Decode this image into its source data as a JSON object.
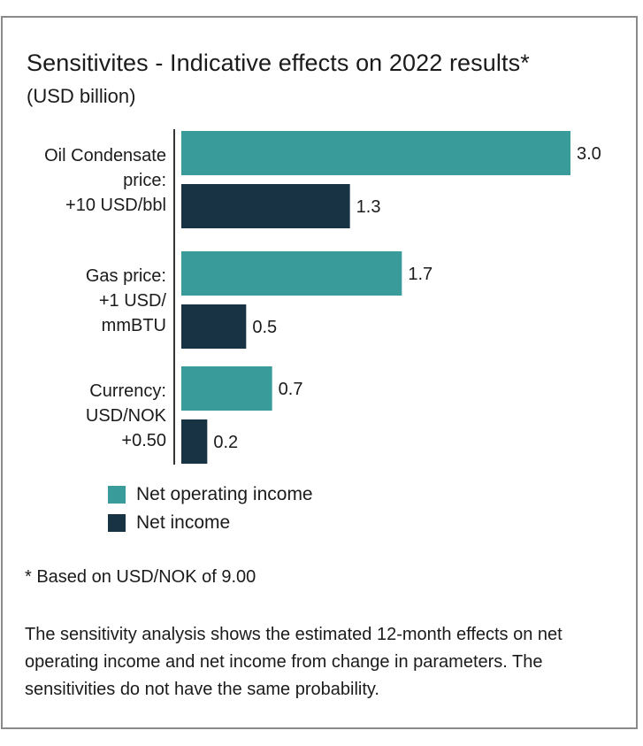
{
  "title": "Sensitivites - Indicative effects on 2022 results*",
  "subtitle": "(USD billion)",
  "colors": {
    "net_operating_income": "#3a9b9b",
    "net_income": "#183344",
    "axis": "#333333"
  },
  "chart_data": {
    "type": "bar",
    "orientation": "horizontal",
    "title": "Sensitivites - Indicative effects on 2022 results*",
    "ylabel": "(USD billion)",
    "categories": [
      [
        "Oil Condensate",
        "price:",
        "+10 USD/bbl"
      ],
      [
        "Gas price:",
        "+1 USD/",
        "mmBTU"
      ],
      [
        "Currency:",
        "USD/NOK",
        "+0.50"
      ]
    ],
    "series": [
      {
        "name": "Net operating income",
        "values": [
          3.0,
          1.7,
          0.7
        ],
        "labels": [
          "3.0",
          "1.7",
          "0.7"
        ]
      },
      {
        "name": "Net income",
        "values": [
          1.3,
          0.5,
          0.2
        ],
        "labels": [
          "1.3",
          "0.5",
          "0.2"
        ]
      }
    ],
    "xlim": [
      0,
      3.0
    ],
    "legend": "bottom-left"
  },
  "legend": {
    "items": [
      {
        "label": "Net operating income"
      },
      {
        "label": "Net income"
      }
    ]
  },
  "footnote": "* Based on USD/NOK of 9.00",
  "description": "The sensitivity analysis shows the estimated 12-month effects on net operating income and net income from change in parameters. The sensitivities do not have the same probability."
}
